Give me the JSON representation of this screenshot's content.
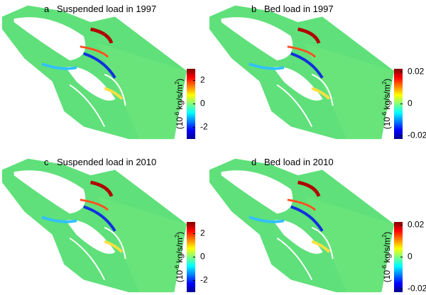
{
  "panels": [
    {
      "letter": "a",
      "title": "Suspended load in 1997",
      "colorbar": {
        "label": [
          "(10",
          "-6",
          " kg/s/m",
          "2",
          ")"
        ],
        "lim": [
          -3,
          3
        ],
        "ticks": [
          2,
          0,
          -2
        ]
      }
    },
    {
      "letter": "b",
      "title": "Bed load in 1997",
      "colorbar": {
        "label": [
          "(10",
          "-6",
          " kg/s/m",
          "2",
          ")"
        ],
        "lim": [
          -0.022,
          0.022
        ],
        "ticks": [
          0.02,
          0,
          -0.02
        ]
      }
    },
    {
      "letter": "c",
      "title": "Suspended load in 2010",
      "colorbar": {
        "label": [
          "(10",
          "-6",
          " kg/s/m",
          "2",
          ")"
        ],
        "lim": [
          -3,
          3
        ],
        "ticks": [
          2,
          0,
          -2
        ]
      }
    },
    {
      "letter": "d",
      "title": "Bed load in 2010",
      "colorbar": {
        "label": [
          "(10",
          "-6",
          " kg/s/m",
          "2",
          ")"
        ],
        "lim": [
          -0.022,
          0.022
        ],
        "ticks": [
          0.02,
          0,
          -0.02
        ]
      }
    }
  ]
}
